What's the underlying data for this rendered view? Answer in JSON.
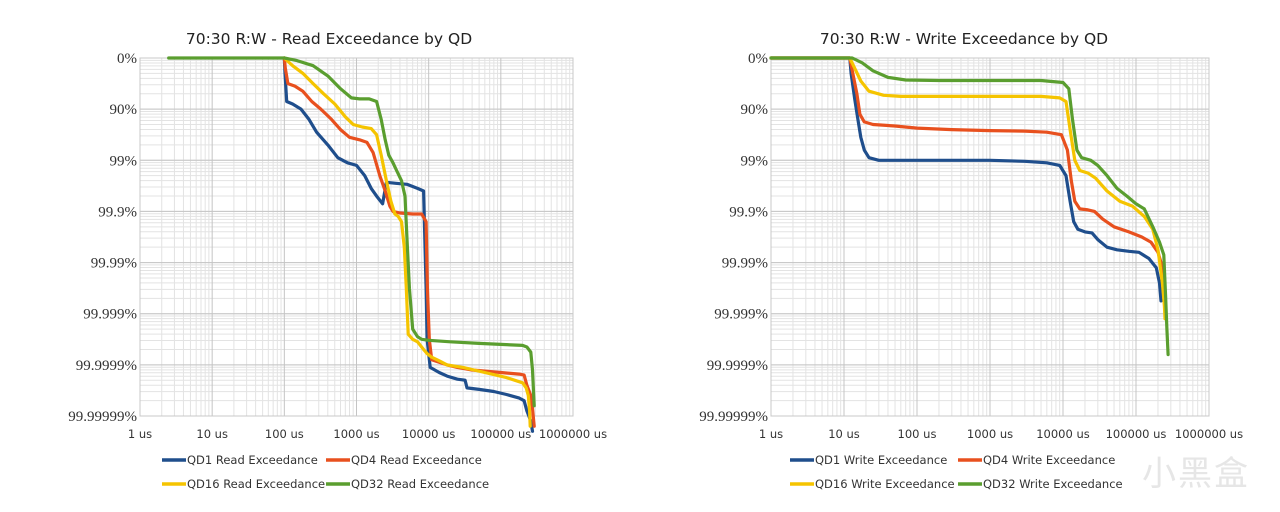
{
  "watermark": "小黑盒",
  "chart_data": [
    {
      "type": "line",
      "title": "70:30 R:W - Read Exceedance by QD",
      "xscale": "log",
      "xlim": [
        1,
        1000000
      ],
      "ylim_nines": [
        0,
        7
      ],
      "xticks": [
        "1 us",
        "10 us",
        "100 us",
        "1000 us",
        "10000 us",
        "100000 us",
        "1000000 us"
      ],
      "yticks": [
        "0%",
        "90%",
        "99%",
        "99.9%",
        "99.99%",
        "99.999%",
        "99.9999%",
        "99.99999%"
      ],
      "grid": true,
      "legend_position": "bottom",
      "series": [
        {
          "name": "QD1 Read Exceedance",
          "color": "#1f4e8c",
          "points": [
            [
              100,
              0
            ],
            [
              102,
              0.3
            ],
            [
              108,
              0.85
            ],
            [
              130,
              0.9
            ],
            [
              170,
              1.0
            ],
            [
              220,
              1.2
            ],
            [
              280,
              1.45
            ],
            [
              400,
              1.7
            ],
            [
              550,
              1.95
            ],
            [
              750,
              2.05
            ],
            [
              1000,
              2.1
            ],
            [
              1300,
              2.3
            ],
            [
              1600,
              2.55
            ],
            [
              1900,
              2.7
            ],
            [
              2300,
              2.85
            ],
            [
              2600,
              2.43
            ],
            [
              3500,
              2.45
            ],
            [
              5000,
              2.47
            ],
            [
              7000,
              2.55
            ],
            [
              8500,
              2.6
            ],
            [
              9200,
              4.5
            ],
            [
              9500,
              5.5
            ],
            [
              10500,
              6.05
            ],
            [
              14000,
              6.15
            ],
            [
              18000,
              6.22
            ],
            [
              25000,
              6.28
            ],
            [
              32000,
              6.3
            ],
            [
              34000,
              6.45
            ],
            [
              50000,
              6.48
            ],
            [
              80000,
              6.52
            ],
            [
              120000,
              6.58
            ],
            [
              180000,
              6.65
            ],
            [
              210000,
              6.7
            ],
            [
              230000,
              6.9
            ],
            [
              260000,
              7.1
            ],
            [
              275000,
              7.3
            ]
          ]
        },
        {
          "name": "QD4 Read Exceedance",
          "color": "#e8501e",
          "points": [
            [
              100,
              0
            ],
            [
              103,
              0.2
            ],
            [
              112,
              0.5
            ],
            [
              140,
              0.55
            ],
            [
              180,
              0.65
            ],
            [
              240,
              0.85
            ],
            [
              320,
              1.0
            ],
            [
              450,
              1.2
            ],
            [
              600,
              1.4
            ],
            [
              800,
              1.55
            ],
            [
              1100,
              1.6
            ],
            [
              1400,
              1.65
            ],
            [
              1700,
              1.85
            ],
            [
              2100,
              2.3
            ],
            [
              2500,
              2.6
            ],
            [
              2900,
              2.9
            ],
            [
              3200,
              3.0
            ],
            [
              4000,
              3.03
            ],
            [
              6000,
              3.05
            ],
            [
              8000,
              3.05
            ],
            [
              9200,
              3.2
            ],
            [
              9600,
              4.5
            ],
            [
              10200,
              5.5
            ],
            [
              11000,
              5.9
            ],
            [
              14000,
              5.95
            ],
            [
              18000,
              6.0
            ],
            [
              25000,
              6.05
            ],
            [
              33000,
              6.08
            ],
            [
              40000,
              6.1
            ],
            [
              100000,
              6.15
            ],
            [
              180000,
              6.18
            ],
            [
              210000,
              6.2
            ],
            [
              230000,
              6.4
            ],
            [
              260000,
              6.6
            ],
            [
              275000,
              6.85
            ],
            [
              290000,
              7.2
            ]
          ]
        },
        {
          "name": "QD16 Read Exceedance",
          "color": "#f5c400",
          "points": [
            [
              100,
              0
            ],
            [
              130,
              0.15
            ],
            [
              180,
              0.3
            ],
            [
              250,
              0.5
            ],
            [
              350,
              0.7
            ],
            [
              500,
              0.9
            ],
            [
              700,
              1.15
            ],
            [
              900,
              1.3
            ],
            [
              1200,
              1.35
            ],
            [
              1600,
              1.38
            ],
            [
              1900,
              1.5
            ],
            [
              2200,
              1.9
            ],
            [
              2600,
              2.4
            ],
            [
              3000,
              2.8
            ],
            [
              3400,
              3.05
            ],
            [
              3800,
              3.1
            ],
            [
              4200,
              3.2
            ],
            [
              4600,
              3.7
            ],
            [
              4900,
              4.5
            ],
            [
              5200,
              5.4
            ],
            [
              6000,
              5.5
            ],
            [
              7000,
              5.55
            ],
            [
              8500,
              5.7
            ],
            [
              9500,
              5.78
            ],
            [
              11000,
              5.85
            ],
            [
              14000,
              5.92
            ],
            [
              18000,
              6.0
            ],
            [
              30000,
              6.05
            ],
            [
              60000,
              6.15
            ],
            [
              120000,
              6.25
            ],
            [
              200000,
              6.35
            ],
            [
              225000,
              6.45
            ],
            [
              240000,
              6.6
            ],
            [
              250000,
              6.9
            ],
            [
              255000,
              7.2
            ]
          ]
        },
        {
          "name": "QD32 Read Exceedance",
          "color": "#5a9e2f",
          "points": [
            [
              2.5,
              0
            ],
            [
              100,
              0
            ],
            [
              150,
              0.05
            ],
            [
              250,
              0.15
            ],
            [
              400,
              0.35
            ],
            [
              600,
              0.6
            ],
            [
              850,
              0.78
            ],
            [
              1100,
              0.8
            ],
            [
              1500,
              0.8
            ],
            [
              1900,
              0.85
            ],
            [
              2200,
              1.2
            ],
            [
              2500,
              1.6
            ],
            [
              2800,
              1.9
            ],
            [
              3200,
              2.05
            ],
            [
              3600,
              2.2
            ],
            [
              4200,
              2.4
            ],
            [
              4700,
              2.7
            ],
            [
              5000,
              3.5
            ],
            [
              5400,
              4.5
            ],
            [
              6000,
              5.3
            ],
            [
              7000,
              5.45
            ],
            [
              8000,
              5.5
            ],
            [
              10000,
              5.52
            ],
            [
              20000,
              5.55
            ],
            [
              50000,
              5.58
            ],
            [
              100000,
              5.6
            ],
            [
              200000,
              5.62
            ],
            [
              230000,
              5.65
            ],
            [
              260000,
              5.75
            ],
            [
              275000,
              6.1
            ],
            [
              285000,
              6.6
            ],
            [
              290000,
              6.8
            ]
          ]
        }
      ]
    },
    {
      "type": "line",
      "title": "70:30 R:W - Write Exceedance by QD",
      "xscale": "log",
      "xlim": [
        1,
        1000000
      ],
      "ylim_nines": [
        0,
        7
      ],
      "xticks": [
        "1 us",
        "10 us",
        "100 us",
        "1000 us",
        "10000 us",
        "100000 us",
        "1000000 us"
      ],
      "yticks": [
        "0%",
        "90%",
        "99%",
        "99.9%",
        "99.99%",
        "99.999%",
        "99.9999%",
        "99.99999%"
      ],
      "grid": true,
      "legend_position": "bottom",
      "series": [
        {
          "name": "QD1 Write Exceedance",
          "color": "#1f4e8c",
          "points": [
            [
              1,
              0
            ],
            [
              12,
              0
            ],
            [
              12.5,
              0.3
            ],
            [
              14,
              0.8
            ],
            [
              15.5,
              1.2
            ],
            [
              17,
              1.55
            ],
            [
              19,
              1.8
            ],
            [
              22,
              1.95
            ],
            [
              30,
              2.0
            ],
            [
              100,
              2.0
            ],
            [
              1000,
              2.0
            ],
            [
              3000,
              2.02
            ],
            [
              6000,
              2.05
            ],
            [
              9000,
              2.1
            ],
            [
              11000,
              2.3
            ],
            [
              12500,
              2.8
            ],
            [
              14000,
              3.2
            ],
            [
              16000,
              3.35
            ],
            [
              20000,
              3.4
            ],
            [
              25000,
              3.42
            ],
            [
              30000,
              3.55
            ],
            [
              40000,
              3.7
            ],
            [
              55000,
              3.75
            ],
            [
              80000,
              3.78
            ],
            [
              110000,
              3.8
            ],
            [
              150000,
              3.92
            ],
            [
              190000,
              4.1
            ],
            [
              210000,
              4.4
            ],
            [
              220000,
              4.75
            ]
          ]
        },
        {
          "name": "QD4 Write Exceedance",
          "color": "#e8501e",
          "points": [
            [
              1,
              0
            ],
            [
              12,
              0
            ],
            [
              13,
              0.25
            ],
            [
              15,
              0.7
            ],
            [
              16.5,
              1.1
            ],
            [
              19,
              1.25
            ],
            [
              25,
              1.3
            ],
            [
              50,
              1.33
            ],
            [
              100,
              1.37
            ],
            [
              300,
              1.4
            ],
            [
              1000,
              1.42
            ],
            [
              3000,
              1.43
            ],
            [
              6000,
              1.45
            ],
            [
              9500,
              1.5
            ],
            [
              11500,
              1.8
            ],
            [
              13000,
              2.4
            ],
            [
              14500,
              2.8
            ],
            [
              17000,
              2.95
            ],
            [
              22000,
              2.97
            ],
            [
              27000,
              3.0
            ],
            [
              35000,
              3.15
            ],
            [
              50000,
              3.3
            ],
            [
              80000,
              3.4
            ],
            [
              120000,
              3.5
            ],
            [
              160000,
              3.6
            ],
            [
              200000,
              3.8
            ],
            [
              220000,
              4.0
            ],
            [
              240000,
              4.3
            ],
            [
              250000,
              4.7
            ]
          ]
        },
        {
          "name": "QD16 Write Exceedance",
          "color": "#f5c400",
          "points": [
            [
              1,
              0
            ],
            [
              12,
              0
            ],
            [
              14,
              0.2
            ],
            [
              17,
              0.45
            ],
            [
              22,
              0.65
            ],
            [
              35,
              0.73
            ],
            [
              60,
              0.75
            ],
            [
              200,
              0.75
            ],
            [
              1000,
              0.75
            ],
            [
              5000,
              0.75
            ],
            [
              9000,
              0.78
            ],
            [
              11000,
              0.85
            ],
            [
              12500,
              1.4
            ],
            [
              14500,
              2.0
            ],
            [
              17000,
              2.2
            ],
            [
              22000,
              2.25
            ],
            [
              28000,
              2.35
            ],
            [
              40000,
              2.6
            ],
            [
              60000,
              2.8
            ],
            [
              90000,
              2.9
            ],
            [
              130000,
              3.1
            ],
            [
              170000,
              3.35
            ],
            [
              200000,
              3.75
            ],
            [
              230000,
              4.4
            ],
            [
              245000,
              4.85
            ],
            [
              250000,
              5.1
            ]
          ]
        },
        {
          "name": "QD32 Write Exceedance",
          "color": "#5a9e2f",
          "points": [
            [
              1,
              0
            ],
            [
              13,
              0
            ],
            [
              18,
              0.1
            ],
            [
              25,
              0.25
            ],
            [
              40,
              0.38
            ],
            [
              70,
              0.43
            ],
            [
              200,
              0.44
            ],
            [
              1000,
              0.44
            ],
            [
              5000,
              0.44
            ],
            [
              10000,
              0.48
            ],
            [
              12000,
              0.6
            ],
            [
              13500,
              1.2
            ],
            [
              15500,
              1.8
            ],
            [
              18000,
              1.95
            ],
            [
              24000,
              2.0
            ],
            [
              30000,
              2.1
            ],
            [
              40000,
              2.3
            ],
            [
              55000,
              2.55
            ],
            [
              75000,
              2.7
            ],
            [
              100000,
              2.85
            ],
            [
              130000,
              2.95
            ],
            [
              170000,
              3.3
            ],
            [
              210000,
              3.6
            ],
            [
              240000,
              3.85
            ],
            [
              255000,
              4.7
            ],
            [
              265000,
              5.3
            ],
            [
              275000,
              5.8
            ]
          ]
        }
      ]
    }
  ]
}
